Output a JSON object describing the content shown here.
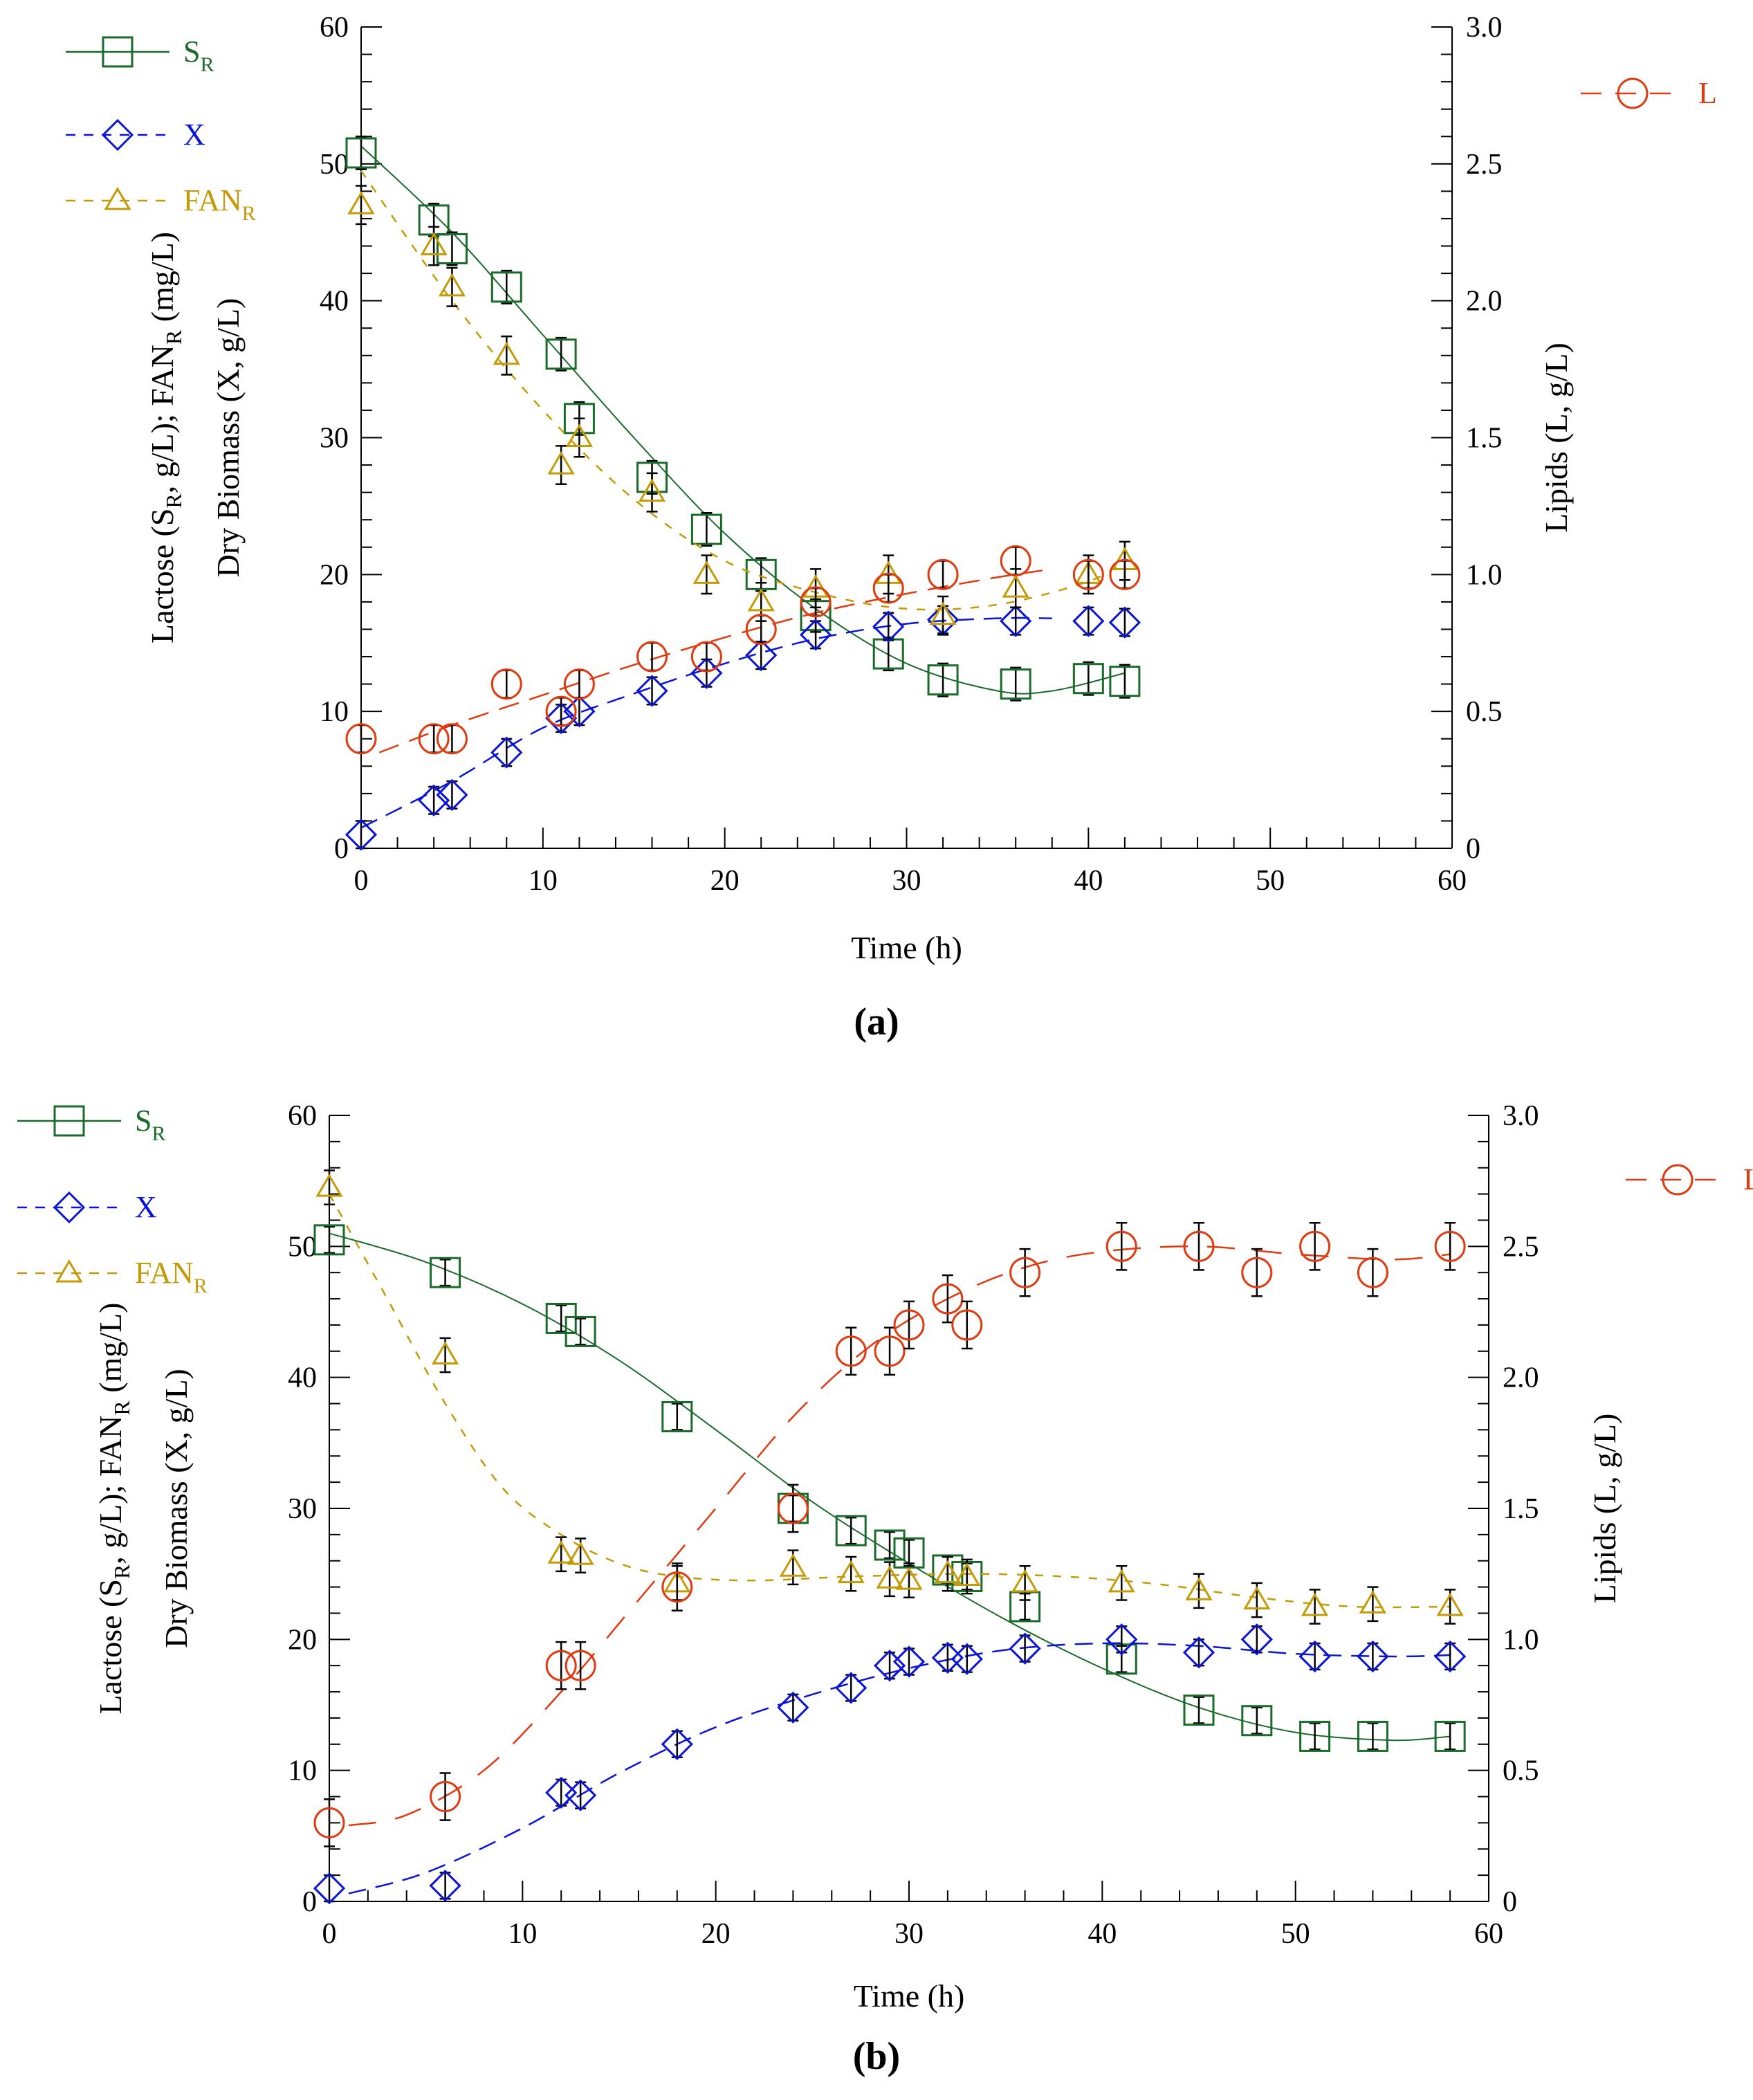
{
  "chart_data": [
    {
      "type": "line",
      "panel_label": "(a)",
      "xlabel": "Time (h)",
      "ylabel_left_line1": "Lactose (S",
      "ylabel_left_line1_sub": "R",
      "ylabel_left_line1_rest": ", g/L); FAN",
      "ylabel_left_line1_sub2": "R",
      "ylabel_left_line1_end": " (mg/L)",
      "ylabel_left_line2": "Dry Biomass (X, g/L)",
      "ylabel_right": "Lipids (L, g/L)",
      "xlim": [
        0,
        60
      ],
      "ylim_left": [
        0,
        60
      ],
      "ylim_right": [
        0,
        3.0
      ],
      "xticks": [
        "0",
        "10",
        "20",
        "30",
        "40",
        "50",
        "60"
      ],
      "yticks_left": [
        "0",
        "10",
        "20",
        "30",
        "40",
        "50",
        "60"
      ],
      "yticks_right": [
        "0",
        "0.5",
        "1.0",
        "1.5",
        "2.0",
        "2.5",
        "3.0"
      ],
      "series": [
        {
          "name": "S",
          "sub": "R",
          "axis": "left",
          "marker": "square",
          "color": "#1a6b2a",
          "dash": "",
          "x": [
            0,
            4,
            5,
            8,
            11,
            12,
            16,
            19,
            22,
            25,
            29,
            32,
            36,
            40,
            42
          ],
          "values": [
            50.8,
            45.9,
            43.8,
            41,
            36.1,
            31.4,
            27.1,
            23.3,
            20,
            17,
            14.2,
            12.3,
            12,
            12.4,
            12.2
          ],
          "fit": [
            [
              0,
              51.3
            ],
            [
              5,
              45
            ],
            [
              10,
              37.5
            ],
            [
              15,
              30
            ],
            [
              20,
              23
            ],
            [
              25,
              17.5
            ],
            [
              30,
              13.5
            ],
            [
              35,
              11.5
            ],
            [
              38,
              11.5
            ],
            [
              42,
              12.8
            ]
          ]
        },
        {
          "name": "X",
          "sub": "",
          "axis": "left",
          "marker": "diamond",
          "color": "#0a14d8",
          "dash": "26,14",
          "x": [
            0,
            4,
            5,
            8,
            11,
            12,
            16,
            19,
            22,
            25,
            29,
            32,
            36,
            40,
            42
          ],
          "values": [
            1,
            3.5,
            3.9,
            7,
            9.5,
            10,
            11.5,
            12.8,
            14.1,
            15.6,
            16.2,
            16.7,
            16.6,
            16.6,
            16.5
          ],
          "fit": [
            [
              0,
              1.5
            ],
            [
              5,
              4.9
            ],
            [
              10,
              8.8
            ],
            [
              15,
              11.3
            ],
            [
              20,
              13.5
            ],
            [
              25,
              15.3
            ],
            [
              30,
              16.4
            ],
            [
              35,
              16.8
            ],
            [
              38,
              16.8
            ]
          ]
        },
        {
          "name": "FAN",
          "sub": "R",
          "axis": "left",
          "marker": "triangle",
          "color": "#c49a06",
          "dash": "12,14",
          "x": [
            0,
            4,
            5,
            8,
            11,
            12,
            16,
            19,
            22,
            25,
            29,
            32,
            36,
            40,
            42
          ],
          "values": [
            47,
            44,
            41,
            36,
            28,
            30,
            26,
            20,
            18,
            19,
            20,
            17,
            19,
            20,
            21
          ],
          "fit": [
            [
              0,
              49.5
            ],
            [
              5,
              40
            ],
            [
              10,
              32
            ],
            [
              15,
              25.5
            ],
            [
              20,
              21
            ],
            [
              25,
              18.7
            ],
            [
              30,
              17.5
            ],
            [
              35,
              17.8
            ],
            [
              40,
              19.5
            ],
            [
              42,
              21
            ]
          ]
        },
        {
          "name": "L",
          "sub": "",
          "axis": "right",
          "marker": "circle",
          "color": "#e03a10",
          "dash": "30,16",
          "x": [
            0,
            4,
            5,
            8,
            11,
            12,
            16,
            19,
            22,
            25,
            29,
            32,
            36,
            40,
            42
          ],
          "values": [
            0.4,
            0.4,
            0.4,
            0.6,
            0.5,
            0.6,
            0.7,
            0.7,
            0.8,
            0.9,
            0.95,
            1.0,
            1.05,
            1.0,
            1.0
          ],
          "fit": [
            [
              1,
              0.35
            ],
            [
              5,
              0.45
            ],
            [
              10,
              0.56
            ],
            [
              15,
              0.67
            ],
            [
              20,
              0.77
            ],
            [
              25,
              0.86
            ],
            [
              30,
              0.93
            ],
            [
              35,
              0.99
            ],
            [
              38,
              1.02
            ]
          ]
        }
      ],
      "error": {
        "S": 1.2,
        "X": 1.0,
        "FAN": 1.4,
        "L": 0.05
      }
    },
    {
      "type": "line",
      "panel_label": "(b)",
      "xlabel": "Time (h)",
      "ylabel_left_line1": "Lactose (S",
      "ylabel_left_line1_sub": "R",
      "ylabel_left_line1_rest": ", g/L); FAN",
      "ylabel_left_line1_sub2": "R",
      "ylabel_left_line1_end": " (mg/L)",
      "ylabel_left_line2": "Dry Biomass (X, g/L)",
      "ylabel_right": "Lipids (L, g/L)",
      "xlim": [
        0,
        60
      ],
      "ylim_left": [
        0,
        60
      ],
      "ylim_right": [
        0,
        3.0
      ],
      "xticks": [
        "0",
        "10",
        "20",
        "30",
        "40",
        "50",
        "60"
      ],
      "yticks_left": [
        "0",
        "10",
        "20",
        "30",
        "40",
        "50",
        "60"
      ],
      "yticks_right": [
        "0",
        "0.5",
        "1.0",
        "1.5",
        "2.0",
        "2.5",
        "3.0"
      ],
      "series": [
        {
          "name": "S",
          "sub": "R",
          "axis": "left",
          "marker": "square",
          "color": "#1a6b2a",
          "dash": "",
          "x": [
            0,
            6,
            12,
            13,
            18,
            24,
            27,
            29,
            30,
            32,
            33,
            36,
            41,
            45,
            48,
            51,
            54,
            58
          ],
          "values": [
            50.5,
            48,
            44.5,
            43.5,
            37,
            30,
            28.3,
            27.2,
            26.6,
            25.3,
            24.8,
            22.5,
            18.5,
            14.6,
            13.8,
            12.6,
            12.6,
            12.6
          ],
          "fit": [
            [
              0,
              51
            ],
            [
              5,
              48.8
            ],
            [
              10,
              45.6
            ],
            [
              15,
              41.3
            ],
            [
              20,
              36
            ],
            [
              25,
              30.5
            ],
            [
              30,
              25.8
            ],
            [
              35,
              21.5
            ],
            [
              40,
              17.8
            ],
            [
              45,
              14.8
            ],
            [
              50,
              12.9
            ],
            [
              55,
              12.3
            ],
            [
              58,
              12.6
            ]
          ]
        },
        {
          "name": "X",
          "sub": "",
          "axis": "left",
          "marker": "diamond",
          "color": "#0a14d8",
          "dash": "26,14",
          "x": [
            0,
            6,
            12,
            13,
            18,
            24,
            27,
            29,
            30,
            32,
            33,
            36,
            41,
            45,
            48,
            51,
            54,
            58
          ],
          "values": [
            1,
            1.2,
            8.3,
            8.1,
            12,
            14.8,
            16.3,
            18,
            18.3,
            18.6,
            18.5,
            19.3,
            20,
            19,
            20,
            18.7,
            18.7,
            18.7
          ],
          "fit": [
            [
              1,
              0.6
            ],
            [
              5,
              2.2
            ],
            [
              10,
              5.6
            ],
            [
              15,
              9.8
            ],
            [
              20,
              13.3
            ],
            [
              25,
              15.8
            ],
            [
              30,
              17.8
            ],
            [
              35,
              19.2
            ],
            [
              40,
              19.7
            ],
            [
              45,
              19.5
            ],
            [
              50,
              18.9
            ],
            [
              55,
              18.7
            ],
            [
              58,
              18.8
            ]
          ]
        },
        {
          "name": "FAN",
          "sub": "R",
          "axis": "left",
          "marker": "triangle",
          "color": "#c49a06",
          "dash": "12,14",
          "x": [
            0,
            6,
            12,
            13,
            18,
            24,
            27,
            29,
            30,
            32,
            33,
            36,
            41,
            45,
            48,
            51,
            54,
            58
          ],
          "values": [
            54.5,
            41.7,
            26.5,
            26.4,
            24.3,
            25.5,
            25,
            24.6,
            24.5,
            25,
            24.8,
            24.3,
            24.3,
            23.7,
            23,
            22.5,
            22.7,
            22.5
          ],
          "fit": [
            [
              0,
              54
            ],
            [
              3,
              46
            ],
            [
              6,
              38
            ],
            [
              9,
              31.5
            ],
            [
              12,
              28
            ],
            [
              15,
              25.8
            ],
            [
              18,
              24.8
            ],
            [
              22,
              24.5
            ],
            [
              27,
              24.8
            ],
            [
              33,
              25
            ],
            [
              38,
              24.8
            ],
            [
              43,
              24.2
            ],
            [
              48,
              23.2
            ],
            [
              53,
              22.5
            ],
            [
              58,
              22.5
            ]
          ]
        },
        {
          "name": "L",
          "sub": "",
          "axis": "right",
          "marker": "circle",
          "color": "#e03a10",
          "dash": "40,28",
          "x": [
            0,
            6,
            12,
            13,
            18,
            24,
            27,
            29,
            30,
            32,
            33,
            36,
            41,
            45,
            48,
            51,
            54,
            58
          ],
          "values": [
            0.3,
            0.4,
            0.9,
            0.9,
            1.2,
            1.5,
            2.1,
            2.1,
            2.2,
            2.3,
            2.2,
            2.4,
            2.5,
            2.5,
            2.4,
            2.5,
            2.4,
            2.5
          ],
          "fit": [
            [
              1,
              0.29
            ],
            [
              4,
              0.33
            ],
            [
              8,
              0.5
            ],
            [
              12,
              0.8
            ],
            [
              16,
              1.15
            ],
            [
              20,
              1.5
            ],
            [
              24,
              1.85
            ],
            [
              28,
              2.12
            ],
            [
              32,
              2.3
            ],
            [
              36,
              2.42
            ],
            [
              40,
              2.48
            ],
            [
              45,
              2.5
            ],
            [
              50,
              2.47
            ],
            [
              55,
              2.45
            ],
            [
              58,
              2.47
            ]
          ]
        }
      ],
      "error": {
        "S": 1.0,
        "X": 1.0,
        "FAN": 1.3,
        "L": 0.09
      }
    }
  ]
}
